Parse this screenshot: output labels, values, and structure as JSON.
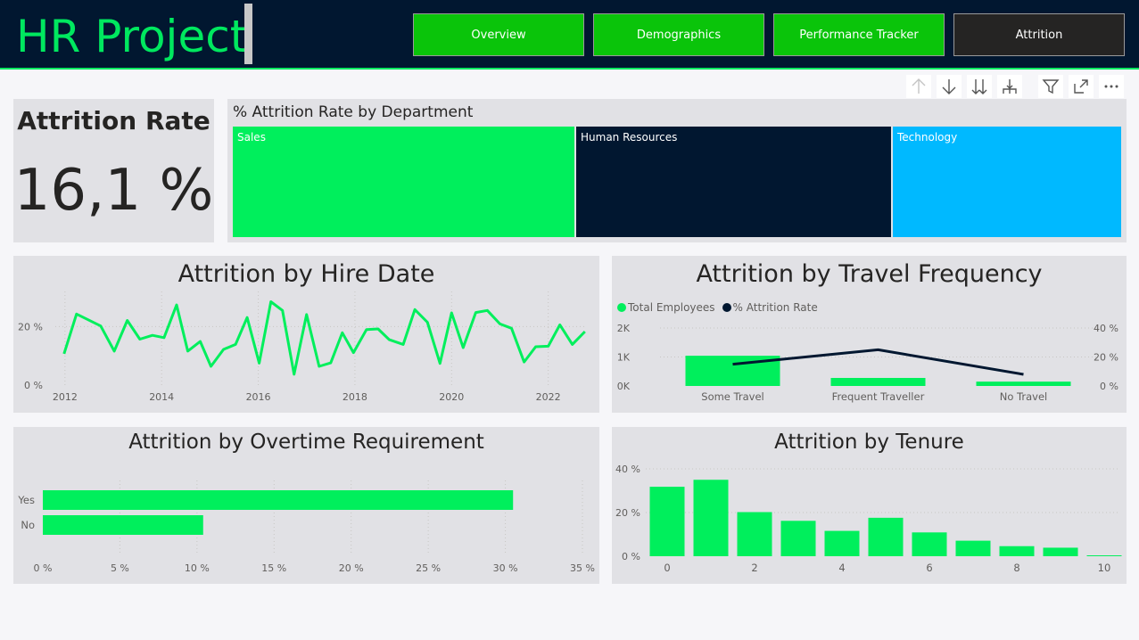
{
  "header": {
    "title": "HR Project",
    "nav": [
      {
        "label": "Overview"
      },
      {
        "label": "Demographics"
      },
      {
        "label": "Performance Tracker"
      },
      {
        "label": "Attrition"
      }
    ],
    "active_tab": "Attrition"
  },
  "toolbar": {
    "icons": [
      "arrow-up-icon",
      "arrow-down-icon",
      "double-arrow-down-icon",
      "hierarchy-expand-icon",
      "filter-icon",
      "focus-mode-icon",
      "more-options-icon"
    ]
  },
  "kpi": {
    "title": "Attrition Rate",
    "value": "16,1 %"
  },
  "colors": {
    "accent_green": "#00EF5C",
    "navy": "#011730",
    "sky": "#00B9FF",
    "header_bg": "#011730",
    "nav_green": "#0AC40A",
    "nav_active": "#252423"
  },
  "department_treemap": {
    "title": "% Attrition Rate by Department",
    "chart_data": {
      "type": "treemap",
      "categories": [
        "Sales",
        "Human Resources",
        "Technology"
      ],
      "relative_sizes": [
        0.39,
        0.36,
        0.26
      ]
    }
  },
  "hire_date": {
    "title": "Attrition by Hire Date",
    "chart_data": {
      "type": "line",
      "x_ticks": [
        "2012",
        "2014",
        "2016",
        "2018",
        "2020",
        "2022"
      ],
      "y_ticks": [
        "0 %",
        "20 %"
      ],
      "x_range": [
        2011.8,
        2022.8
      ],
      "ylim": [
        0,
        0.32
      ],
      "x": [
        2011.98,
        2012.24,
        2012.74,
        2013.02,
        2013.29,
        2013.55,
        2013.81,
        2014.05,
        2014.31,
        2014.54,
        2014.8,
        2015.02,
        2015.28,
        2015.53,
        2015.77,
        2016.02,
        2016.26,
        2016.5,
        2016.74,
        2017.0,
        2017.26,
        2017.5,
        2017.74,
        2017.97,
        2018.24,
        2018.48,
        2018.71,
        2019.0,
        2019.24,
        2019.5,
        2019.76,
        2020.0,
        2020.24,
        2020.5,
        2020.74,
        2021.0,
        2021.24,
        2021.5,
        2021.74,
        2022.0,
        2022.24,
        2022.5,
        2022.76
      ],
      "y": [
        0.107,
        0.243,
        0.202,
        0.116,
        0.221,
        0.157,
        0.17,
        0.162,
        0.274,
        0.116,
        0.149,
        0.064,
        0.122,
        0.139,
        0.231,
        0.075,
        0.285,
        0.255,
        0.037,
        0.241,
        0.064,
        0.076,
        0.179,
        0.111,
        0.19,
        0.192,
        0.155,
        0.139,
        0.258,
        0.215,
        0.074,
        0.247,
        0.128,
        0.248,
        0.255,
        0.209,
        0.194,
        0.079,
        0.131,
        0.133,
        0.206,
        0.139,
        0.183
      ]
    }
  },
  "travel": {
    "title": "Attrition by Travel Frequency",
    "legend": [
      "Total Employees",
      "% Attrition Rate"
    ],
    "chart_data": {
      "type": "bar+line",
      "categories": [
        "Some Travel",
        "Frequent Traveller",
        "No Travel"
      ],
      "left_ticks": [
        "0K",
        "1K",
        "2K"
      ],
      "right_ticks": [
        "0 %",
        "20 %",
        "40 %"
      ],
      "series": [
        {
          "name": "Total Employees",
          "values": [
            1043,
            277,
            150
          ]
        },
        {
          "name": "% Attrition Rate",
          "values": [
            0.15,
            0.25,
            0.08
          ]
        }
      ],
      "ylim_left": [
        0,
        2000
      ],
      "ylim_right": [
        0,
        0.4
      ]
    }
  },
  "overtime": {
    "title": "Attrition by Overtime Requirement",
    "chart_data": {
      "type": "bar",
      "categories": [
        "Yes",
        "No"
      ],
      "values": [
        0.305,
        0.104
      ],
      "x_ticks": [
        "0 %",
        "5 %",
        "10 %",
        "15 %",
        "20 %",
        "25 %",
        "30 %",
        "35 %"
      ],
      "xlim": [
        0,
        0.35
      ]
    }
  },
  "tenure": {
    "title": "Attrition by Tenure",
    "chart_data": {
      "type": "bar",
      "categories": [
        0,
        1,
        2,
        3,
        4,
        5,
        6,
        7,
        8,
        9,
        10
      ],
      "values": [
        0.318,
        0.35,
        0.202,
        0.162,
        0.116,
        0.176,
        0.109,
        0.071,
        0.046,
        0.039,
        0.004
      ],
      "x_ticks": [
        "0",
        "2",
        "4",
        "6",
        "8",
        "10"
      ],
      "y_ticks": [
        "0 %",
        "20 %",
        "40 %"
      ],
      "ylim": [
        0,
        0.4
      ]
    }
  }
}
